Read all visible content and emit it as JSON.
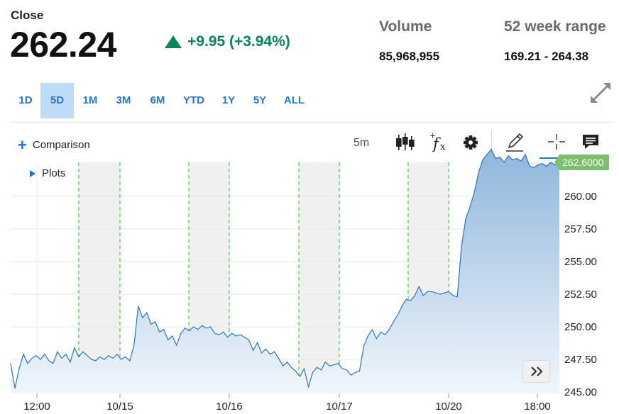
{
  "header": {
    "close_label": "Close",
    "close_value": "262.24",
    "change_text": "+9.95 (+3.94%)",
    "change_color": "#07845c",
    "volume_label": "Volume",
    "volume_value": "85,968,955",
    "range_label": "52 week range",
    "range_value": "169.21 - 264.38"
  },
  "ranges": [
    "1D",
    "5D",
    "1M",
    "3M",
    "6M",
    "YTD",
    "1Y",
    "5Y",
    "ALL"
  ],
  "active_range": "5D",
  "toolbar": {
    "comparison_label": "Comparison",
    "interval": "5m",
    "tools": [
      "candlestick-icon",
      "function-icon",
      "gear-icon",
      "pencil-icon",
      "crosshair-icon",
      "comment-icon"
    ]
  },
  "plots_label": "Plots",
  "last_price_label": "262.6000",
  "chart_data": {
    "type": "area",
    "x_tick_labels": [
      "12:00",
      "10/15",
      "10/16",
      "10/17",
      "10/20",
      "18:00"
    ],
    "y_tick_labels": [
      "245.00",
      "247.50",
      "250.00",
      "252.50",
      "255.00",
      "257.50",
      "260.00"
    ],
    "ylim": [
      244.9,
      262.6
    ],
    "last_value": 262.6,
    "line_color": "#2f74b8",
    "grid": true,
    "series": [
      {
        "name": "",
        "values": [
          247.2,
          245.3,
          246.8,
          247.9,
          247.2,
          247.6,
          247.8,
          247.5,
          247.9,
          247.4,
          247.2,
          248.1,
          247.6,
          247.9,
          247.3,
          248.4,
          247.7,
          248.1,
          247.8,
          247.5,
          247.4,
          247.7,
          247.5,
          247.8,
          247.6,
          247.9,
          247.5,
          247.7,
          247.4,
          248.6,
          251.6,
          250.7,
          251.1,
          250.2,
          250.4,
          249.6,
          249.8,
          249.0,
          249.3,
          248.6,
          249.5,
          249.9,
          249.7,
          250.0,
          249.8,
          250.1,
          249.9,
          250.0,
          249.5,
          249.4,
          249.6,
          249.2,
          249.5,
          249.3,
          249.4,
          249.2,
          249.0,
          248.2,
          248.8,
          248.0,
          248.3,
          247.9,
          248.1,
          247.6,
          247.0,
          247.3,
          246.9,
          246.6,
          246.2,
          246.8,
          245.4,
          246.5,
          246.9,
          246.7,
          247.3,
          247.0,
          247.1,
          247.2,
          246.8,
          246.7,
          246.3,
          246.5,
          246.6,
          248.5,
          249.3,
          249.8,
          249.1,
          249.6,
          249.4,
          249.8,
          250.4,
          250.9,
          251.6,
          252.1,
          252.0,
          252.4,
          253.1,
          252.4,
          252.7,
          252.7,
          252.6,
          252.5,
          252.6,
          252.7,
          252.4,
          252.3,
          256.2,
          258.3,
          259.2,
          260.3,
          261.8,
          262.8,
          263.2,
          263.6,
          262.9,
          263.0,
          262.6,
          263.1,
          262.8,
          262.9,
          262.7,
          263.2,
          262.3,
          262.2,
          262.4,
          262.5,
          262.3,
          262.6,
          262.4,
          262.6
        ]
      }
    ]
  }
}
